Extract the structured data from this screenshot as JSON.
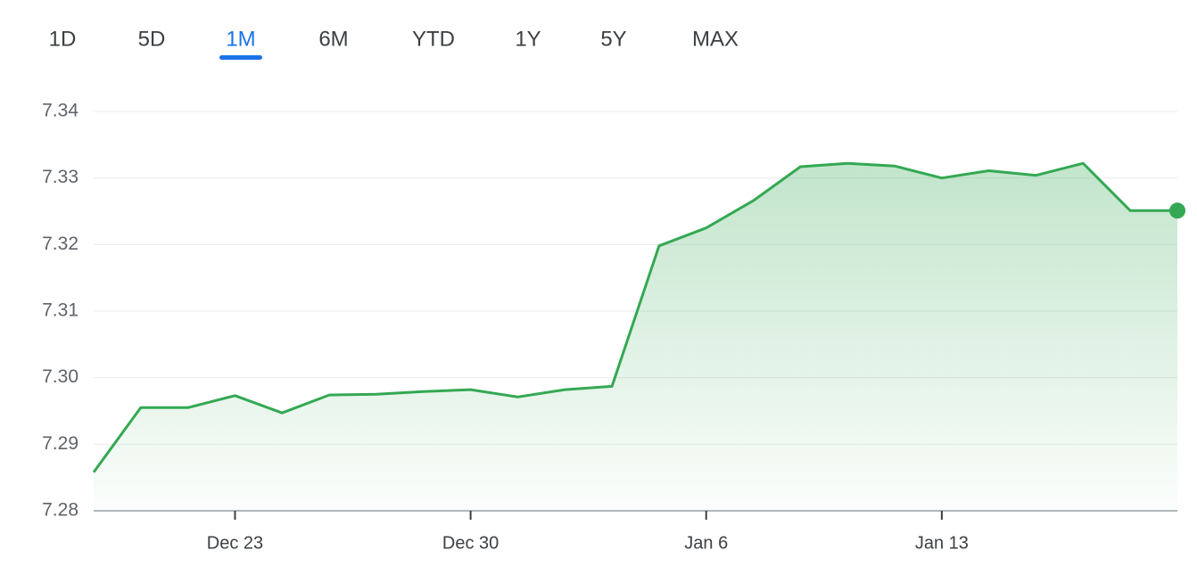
{
  "tabs": [
    "1D",
    "5D",
    "1M",
    "6M",
    "YTD",
    "1Y",
    "5Y",
    "MAX"
  ],
  "selected_tab": 2,
  "chart_data": {
    "type": "line",
    "categories": [
      null,
      null,
      null,
      "Dec 23",
      null,
      null,
      null,
      null,
      "Dec 30",
      null,
      null,
      null,
      null,
      "Jan 6",
      null,
      null,
      null,
      null,
      "Jan 13",
      null,
      null,
      null,
      null,
      null
    ],
    "values": [
      7.2858,
      7.2955,
      7.2955,
      7.2973,
      7.2947,
      7.2974,
      7.2975,
      7.2979,
      7.2982,
      7.2971,
      7.2982,
      7.2987,
      7.3198,
      7.3225,
      7.3266,
      7.3317,
      7.3322,
      7.3318,
      7.33,
      7.3311,
      7.3304,
      7.3322,
      7.3251,
      7.3251
    ],
    "color": "#34a853",
    "ylim": [
      7.28,
      7.34
    ],
    "yticks": [
      7.28,
      7.29,
      {
        "value": 7.3,
        "label": "7.30"
      },
      7.31,
      7.32,
      7.33,
      7.34
    ],
    "grid": true
  }
}
